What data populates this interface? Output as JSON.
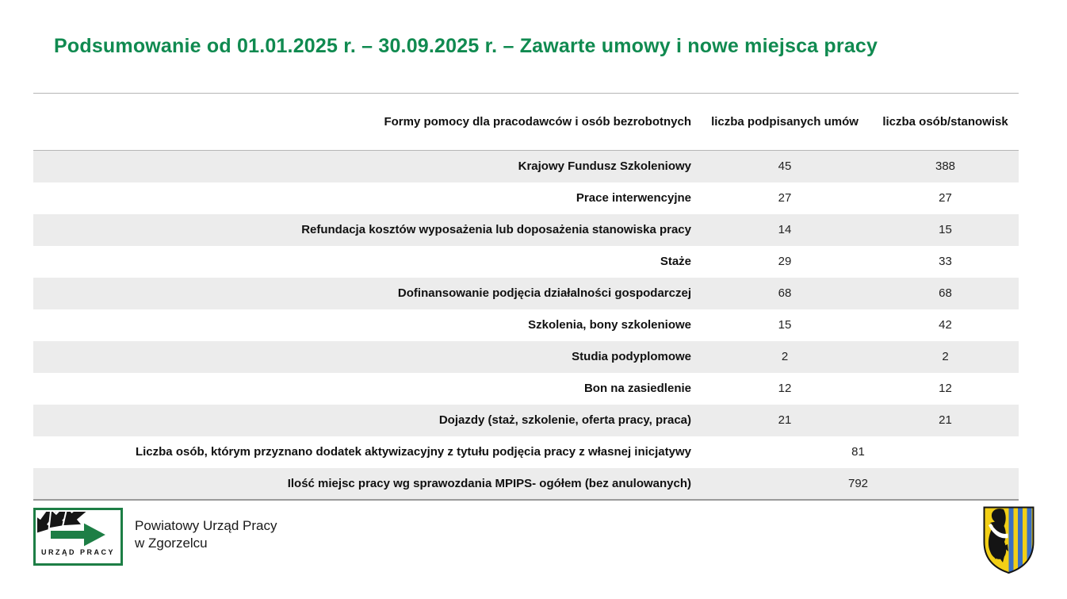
{
  "title": "Podsumowanie od 01.01.2025 r. – 30.09.2025 r. – Zawarte umowy i nowe miejsca pracy",
  "colors": {
    "title_green": "#108A50",
    "logo_green": "#1d7e45",
    "row_alt": "#ECECEC",
    "shield_gold": "#F2CF16",
    "shield_blue": "#3A6FC4"
  },
  "table": {
    "headers": [
      "Formy pomocy dla pracodawców i osób bezrobotnych",
      "liczba podpisanych umów",
      "liczba osób/stanowisk"
    ],
    "rows": [
      {
        "label": "Krajowy Fundusz Szkoleniowy",
        "contracts": "45",
        "positions": "388"
      },
      {
        "label": "Prace interwencyjne",
        "contracts": "27",
        "positions": "27"
      },
      {
        "label": "Refundacja kosztów wyposażenia lub doposażenia stanowiska pracy",
        "contracts": "14",
        "positions": "15"
      },
      {
        "label": "Staże",
        "contracts": "29",
        "positions": "33"
      },
      {
        "label": "Dofinansowanie podjęcia działalności gospodarczej",
        "contracts": "68",
        "positions": "68"
      },
      {
        "label": "Szkolenia, bony szkoleniowe",
        "contracts": "15",
        "positions": "42"
      },
      {
        "label": "Studia podyplomowe",
        "contracts": "2",
        "positions": "2"
      },
      {
        "label": "Bon na zasiedlenie",
        "contracts": "12",
        "positions": "12"
      },
      {
        "label": "Dojazdy (staż, szkolenie, oferta pracy, praca)",
        "contracts": "21",
        "positions": "21"
      },
      {
        "label": "Liczba osób, którym przyznano dodatek aktywizacyjny z tytułu podjęcia pracy z własnej inicjatywy",
        "value": "81",
        "span": true
      },
      {
        "label": "Ilość miejsc pracy wg sprawozdania MPIPS- ogółem (bez anulowanych)",
        "value": "792",
        "span": true
      }
    ]
  },
  "footer": {
    "logo_caption": "URZĄD PRACY",
    "org_line1": "Powiatowy Urząd Pracy",
    "org_line2": "w Zgorzelcu",
    "emblem_name": "zgorzelec-county-coat-of-arms"
  }
}
